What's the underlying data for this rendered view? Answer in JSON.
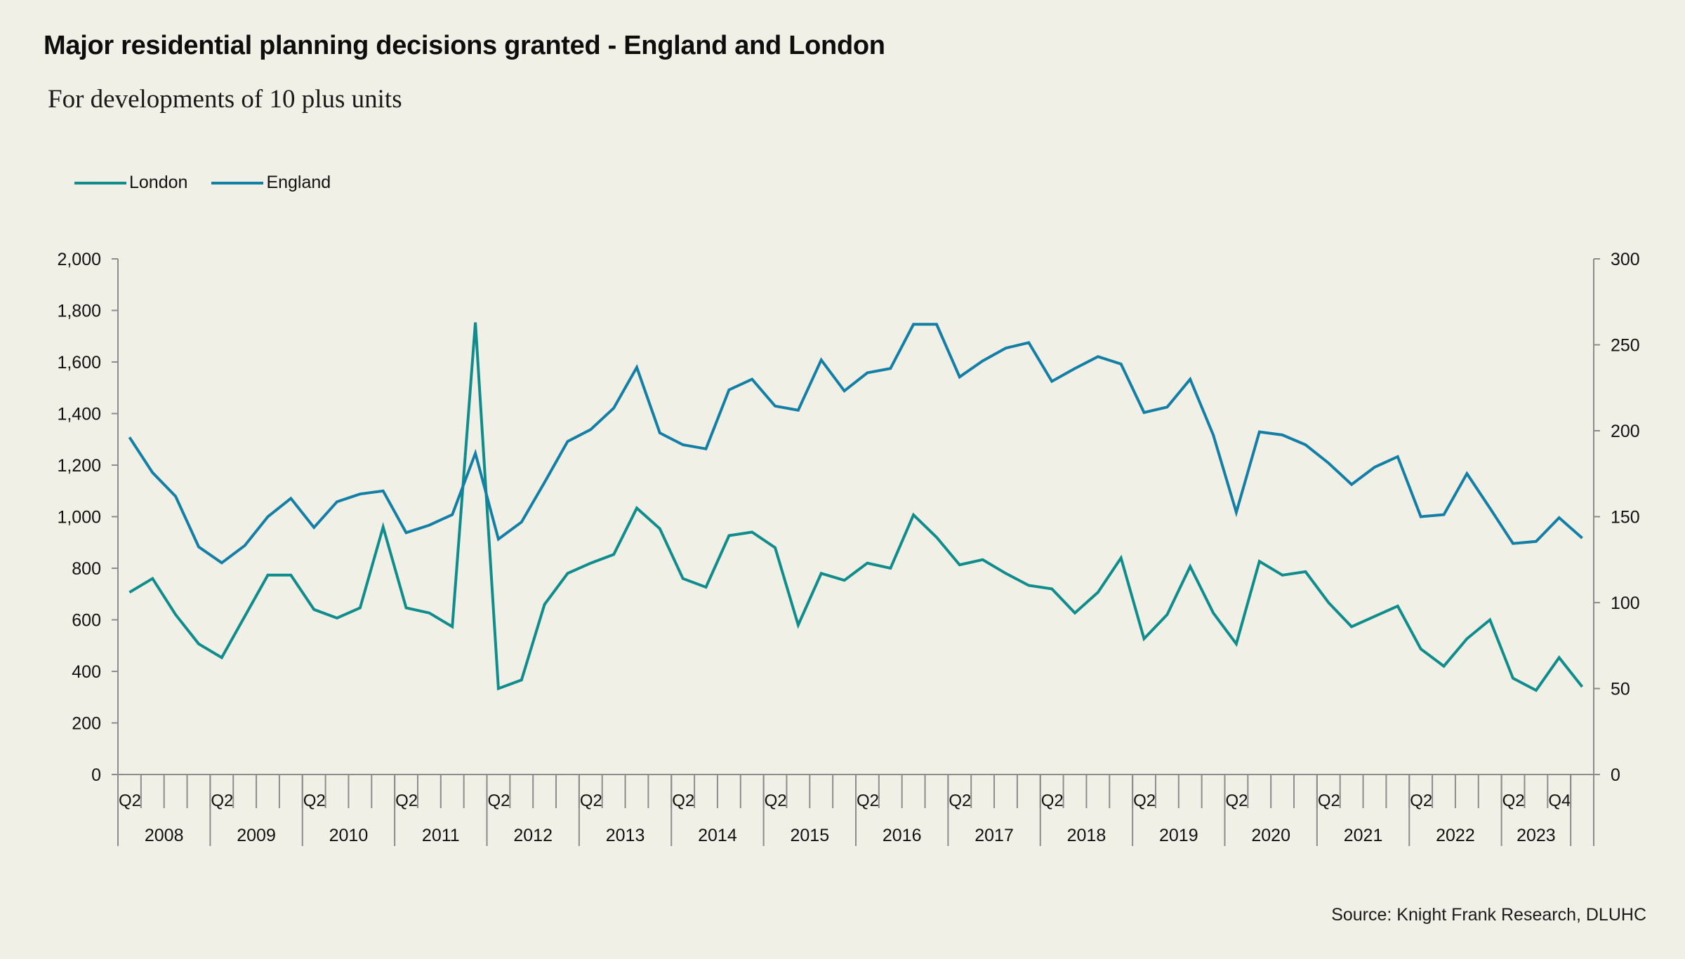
{
  "title": "Major residential planning decisions granted - England and London",
  "subtitle": "For developments of 10 plus units",
  "source": "Source: Knight Frank Research, DLUHC",
  "legend": [
    {
      "label": "London",
      "color": "#0F8C8C"
    },
    {
      "label": "England",
      "color": "#137FA6"
    }
  ],
  "chart_data": {
    "type": "line",
    "title": "Major residential planning decisions granted - England and London",
    "subtitle": "For developments of 10 plus units",
    "xlabel": "",
    "ylabel": "",
    "legend_position": "top-left",
    "grid": false,
    "y_left": {
      "range": [
        0,
        2000
      ],
      "ticks": [
        "0",
        "200",
        "400",
        "600",
        "800",
        "1,000",
        "1,200",
        "1,400",
        "1,600",
        "1,800",
        "2,000"
      ],
      "tick_values": [
        0,
        200,
        400,
        600,
        800,
        1000,
        1200,
        1400,
        1600,
        1800,
        2000
      ]
    },
    "y_right": {
      "range": [
        0,
        300
      ],
      "ticks": [
        "0",
        "50",
        "100",
        "150",
        "200",
        "250",
        "300"
      ],
      "tick_values": [
        0,
        50,
        100,
        150,
        200,
        250,
        300
      ]
    },
    "x_year_groups": [
      {
        "label": "2008",
        "count": 4
      },
      {
        "label": "2009",
        "count": 4
      },
      {
        "label": "2010",
        "count": 4
      },
      {
        "label": "2011",
        "count": 4
      },
      {
        "label": "2012",
        "count": 4
      },
      {
        "label": "2013",
        "count": 4
      },
      {
        "label": "2014",
        "count": 4
      },
      {
        "label": "2015",
        "count": 4
      },
      {
        "label": "2016",
        "count": 4
      },
      {
        "label": "2017",
        "count": 4
      },
      {
        "label": "2018",
        "count": 4
      },
      {
        "label": "2019",
        "count": 4
      },
      {
        "label": "2020",
        "count": 4
      },
      {
        "label": "2021",
        "count": 4
      },
      {
        "label": "2022",
        "count": 4
      },
      {
        "label": "2023",
        "count": 3
      },
      {
        "label": "",
        "count": 1
      }
    ],
    "x_quarter_labels": [
      "Q2",
      "",
      "",
      "",
      "Q2",
      "",
      "",
      "",
      "Q2",
      "",
      "",
      "",
      "Q2",
      "",
      "",
      "",
      "Q2",
      "",
      "",
      "",
      "Q2",
      "",
      "",
      "",
      "Q2",
      "",
      "",
      "",
      "Q2",
      "",
      "",
      "",
      "Q2",
      "",
      "",
      "",
      "Q2",
      "",
      "",
      "",
      "Q2",
      "",
      "",
      "",
      "Q2",
      "",
      "",
      "",
      "Q2",
      "",
      "",
      "",
      "Q2",
      "",
      "",
      "",
      "Q2",
      "",
      "",
      "",
      "Q2",
      "",
      "Q4",
      ""
    ],
    "series": [
      {
        "name": "London",
        "axis": "right",
        "color": "#0F8C8C",
        "values": [
          106,
          114,
          93,
          76,
          68,
          92,
          116,
          116,
          96,
          91,
          97,
          144,
          97,
          94,
          86,
          263,
          50,
          55,
          99,
          117,
          123,
          128,
          155,
          143,
          114,
          109,
          139,
          141,
          132,
          87,
          117,
          113,
          123,
          120,
          151,
          138,
          122,
          125,
          117,
          110,
          108,
          94,
          106,
          126,
          79,
          93,
          121,
          94,
          76,
          124,
          116,
          118,
          100,
          86,
          92,
          98,
          73,
          63,
          79,
          90,
          56,
          49,
          68,
          51
        ]
      },
      {
        "name": "England",
        "axis": "left",
        "color": "#137FA6",
        "values": [
          1308,
          1171,
          1079,
          883,
          821,
          888,
          1000,
          1071,
          958,
          1058,
          1088,
          1100,
          938,
          967,
          1008,
          1246,
          913,
          979,
          1133,
          1292,
          1338,
          1421,
          1579,
          1325,
          1279,
          1263,
          1492,
          1533,
          1429,
          1413,
          1608,
          1488,
          1558,
          1575,
          1746,
          1746,
          1542,
          1604,
          1654,
          1675,
          1525,
          1575,
          1621,
          1592,
          1404,
          1425,
          1533,
          1317,
          1017,
          1329,
          1317,
          1279,
          1208,
          1125,
          1192,
          1233,
          1000,
          1008,
          1167,
          1033,
          896,
          904,
          996,
          917
        ]
      }
    ]
  }
}
